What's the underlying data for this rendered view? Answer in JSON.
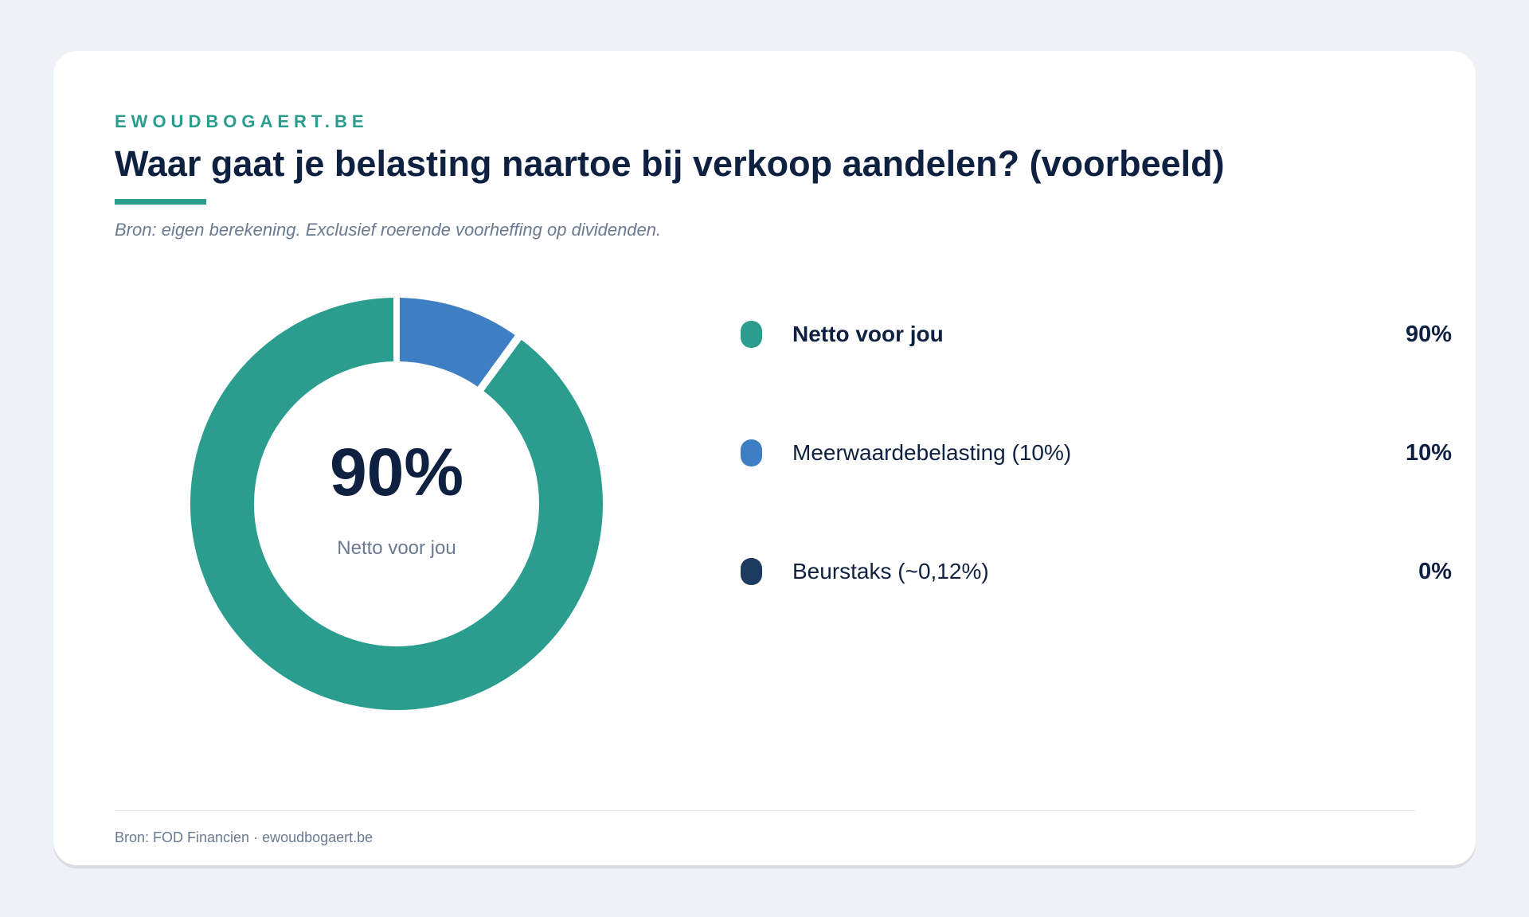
{
  "brand": "EWOUDBOGAERT.BE",
  "title": "Waar gaat je belasting naartoe bij verkoop aandelen? (voorbeeld)",
  "subtitle": "Bron: eigen berekening. Exclusief roerende voorheffing op dividenden.",
  "center": {
    "value": "90%",
    "label": "Netto voor jou"
  },
  "footer": "Bron: FOD Financien · ewoudbogaert.be",
  "colors": {
    "accent": "#2a9d8f",
    "blue": "#3e7ec2",
    "navy": "#1d3a5f"
  },
  "chart_data": {
    "type": "pie",
    "variant": "donut",
    "legend_position": "right",
    "slices": [
      {
        "name": "Netto voor jou",
        "value": 90,
        "display": "90%",
        "color": "#2a9d8f"
      },
      {
        "name": "Meerwaardebelasting (10%)",
        "value": 10,
        "display": "10%",
        "color": "#3e7ec2"
      },
      {
        "name": "Beurstaks (~0,12%)",
        "value": 0.12,
        "display": "0%",
        "color": "#1d3a5f"
      }
    ]
  }
}
